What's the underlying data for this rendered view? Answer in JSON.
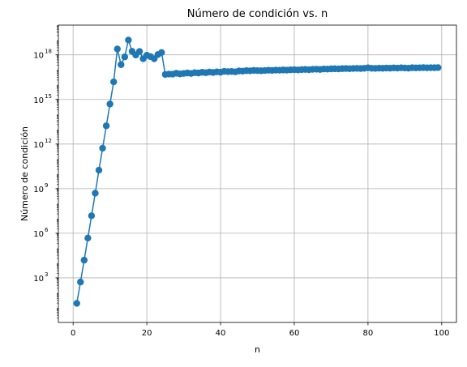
{
  "chart_data": {
    "type": "line",
    "title": "Número de condición vs. n",
    "xlabel": "n",
    "ylabel": "Número de condición",
    "yscale": "log",
    "xlim": [
      -4,
      104
    ],
    "ylim": [
      1,
      1e+20
    ],
    "xticks": [
      0,
      20,
      40,
      60,
      80,
      100
    ],
    "yticks": [
      {
        "value": 1000,
        "mant": "10",
        "exp": "3"
      },
      {
        "value": 1000000,
        "mant": "10",
        "exp": "6"
      },
      {
        "value": 1000000000,
        "mant": "10",
        "exp": "9"
      },
      {
        "value": 1000000000000,
        "mant": "10",
        "exp": "12"
      },
      {
        "value": 1000000000000000,
        "mant": "10",
        "exp": "15"
      },
      {
        "value": 1000000000000000000,
        "mant": "10",
        "exp": "18"
      }
    ],
    "grid": true,
    "color": "#1f77b4",
    "marker": "circle",
    "series": [
      {
        "x": [
          1,
          2,
          3,
          4,
          5,
          6,
          7,
          8,
          9,
          10,
          11,
          12,
          13,
          14,
          15,
          16,
          17,
          18,
          19,
          20,
          21,
          22,
          23,
          24,
          25,
          26,
          27,
          28,
          29,
          30,
          31,
          32,
          33,
          34,
          35,
          36,
          37,
          38,
          39,
          40,
          41,
          42,
          43,
          44,
          45,
          46,
          47,
          48,
          49,
          50,
          51,
          52,
          53,
          54,
          55,
          56,
          57,
          58,
          59,
          60,
          61,
          62,
          63,
          64,
          65,
          66,
          67,
          68,
          69,
          70,
          71,
          72,
          73,
          74,
          75,
          76,
          77,
          78,
          79,
          80,
          81,
          82,
          83,
          84,
          85,
          86,
          87,
          88,
          89,
          90,
          91,
          92,
          93,
          94,
          95,
          96,
          97,
          98,
          99
        ],
        "y": [
          19.3,
          524,
          15500,
          477000,
          15000000,
          495000000,
          17500000000,
          526000000000,
          16900000000000,
          494000000000000,
          15200000000000000,
          2480000000000000000,
          220000000000000000,
          729000000000000000,
          9870000000000000000,
          1720000000000000000,
          969000000000000000,
          1690000000000000000,
          546000000000000000,
          940000000000000000,
          760000000000000000,
          546000000000000000,
          1050000000000000000,
          1440000000000000000,
          48000000000000000,
          51000000000000000,
          50000000000000000,
          58000000000000000,
          52000000000000000,
          56000000000000000,
          60000000000000000,
          56000000000000000,
          63000000000000000,
          60000000000000000,
          67000000000000000,
          63000000000000000,
          70000000000000000,
          65000000000000000,
          72000000000000000,
          68000000000000000,
          78000000000000000,
          74000000000000000,
          76000000000000000,
          72000000000000000,
          82000000000000000,
          80000000000000000,
          86000000000000000,
          84000000000000000,
          90000000000000000,
          87000000000000000,
          85000000000000000,
          88000000000000000,
          92000000000000000,
          90000000000000000,
          94000000000000000,
          92000000000000000,
          96000000000000000,
          94000000000000000,
          98000000000000000,
          100000000000000000,
          97000000000000000,
          102000000000000000,
          104000000000000000,
          100000000000000000,
          106000000000000000,
          108000000000000000,
          104000000000000000,
          112000000000000000,
          110000000000000000,
          114000000000000000,
          116000000000000000,
          113000000000000000,
          118000000000000000,
          120000000000000000,
          117000000000000000,
          121000000000000000,
          123000000000000000,
          120000000000000000,
          125000000000000000,
          135000000000000000,
          125000000000000000,
          122000000000000000,
          127000000000000000,
          124000000000000000,
          129000000000000000,
          127000000000000000,
          132000000000000000,
          128000000000000000,
          134000000000000000,
          131000000000000000,
          126000000000000000,
          136000000000000000,
          133000000000000000,
          135000000000000000,
          138000000000000000,
          134000000000000000,
          137000000000000000,
          136000000000000000,
          139000000000000000
        ]
      }
    ]
  }
}
